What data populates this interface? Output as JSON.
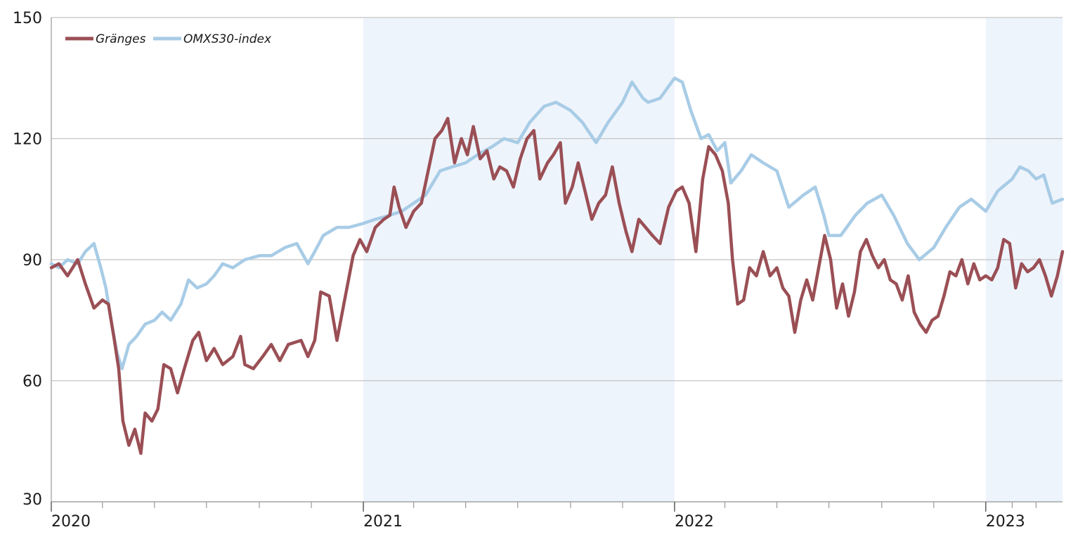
{
  "chart_data": {
    "type": "line",
    "y_ticks": [
      30,
      60,
      90,
      120,
      150
    ],
    "ylim": [
      30,
      150
    ],
    "x_range": [
      "2020-01-01",
      "2023-04-01"
    ],
    "x_tick_labels": [
      {
        "label": "2020",
        "date": "2020-01-01"
      },
      {
        "label": "2021",
        "date": "2021-01-01"
      },
      {
        "label": "2022",
        "date": "2022-01-01"
      },
      {
        "label": "2023",
        "date": "2023-01-01"
      }
    ],
    "month_ticks": [
      "2020-03-01",
      "2020-05-01",
      "2020-07-01",
      "2020-09-01",
      "2020-11-01",
      "2021-01-01",
      "2021-03-01",
      "2021-05-01",
      "2021-07-01",
      "2021-09-01",
      "2021-11-01",
      "2022-01-01",
      "2022-03-01",
      "2022-05-01",
      "2022-07-01",
      "2022-09-01",
      "2022-11-01",
      "2023-01-01",
      "2023-02-01",
      "2023-03-01"
    ],
    "shaded_periods": [
      {
        "from": "2021-01-01",
        "to": "2022-01-01"
      },
      {
        "from": "2023-01-01",
        "to": "2023-04-01"
      }
    ],
    "grid": "horizontal",
    "legend_position": "top-left",
    "series": [
      {
        "name": "Gränges",
        "color": "#9a4f55",
        "points": [
          [
            "2020-01-01",
            88
          ],
          [
            "2020-01-10",
            89
          ],
          [
            "2020-01-20",
            86
          ],
          [
            "2020-02-01",
            90
          ],
          [
            "2020-02-10",
            84
          ],
          [
            "2020-02-20",
            78
          ],
          [
            "2020-03-01",
            80
          ],
          [
            "2020-03-08",
            79
          ],
          [
            "2020-03-15",
            70
          ],
          [
            "2020-03-20",
            63
          ],
          [
            "2020-03-25",
            50
          ],
          [
            "2020-04-01",
            44
          ],
          [
            "2020-04-08",
            48
          ],
          [
            "2020-04-15",
            42
          ],
          [
            "2020-04-20",
            52
          ],
          [
            "2020-04-28",
            50
          ],
          [
            "2020-05-05",
            53
          ],
          [
            "2020-05-12",
            64
          ],
          [
            "2020-05-20",
            63
          ],
          [
            "2020-05-28",
            57
          ],
          [
            "2020-06-05",
            63
          ],
          [
            "2020-06-15",
            70
          ],
          [
            "2020-06-22",
            72
          ],
          [
            "2020-07-01",
            65
          ],
          [
            "2020-07-10",
            68
          ],
          [
            "2020-07-20",
            64
          ],
          [
            "2020-08-01",
            66
          ],
          [
            "2020-08-10",
            71
          ],
          [
            "2020-08-15",
            64
          ],
          [
            "2020-08-25",
            63
          ],
          [
            "2020-09-05",
            66
          ],
          [
            "2020-09-15",
            69
          ],
          [
            "2020-09-25",
            65
          ],
          [
            "2020-10-05",
            69
          ],
          [
            "2020-10-20",
            70
          ],
          [
            "2020-10-28",
            66
          ],
          [
            "2020-11-05",
            70
          ],
          [
            "2020-11-12",
            82
          ],
          [
            "2020-11-22",
            81
          ],
          [
            "2020-12-01",
            70
          ],
          [
            "2020-12-10",
            80
          ],
          [
            "2020-12-20",
            91
          ],
          [
            "2020-12-28",
            95
          ],
          [
            "2021-01-05",
            92
          ],
          [
            "2021-01-15",
            98
          ],
          [
            "2021-01-25",
            100
          ],
          [
            "2021-02-01",
            101
          ],
          [
            "2021-02-06",
            108
          ],
          [
            "2021-02-12",
            103
          ],
          [
            "2021-02-20",
            98
          ],
          [
            "2021-03-01",
            102
          ],
          [
            "2021-03-10",
            104
          ],
          [
            "2021-03-18",
            112
          ],
          [
            "2021-03-26",
            120
          ],
          [
            "2021-04-03",
            122
          ],
          [
            "2021-04-10",
            125
          ],
          [
            "2021-04-18",
            114
          ],
          [
            "2021-04-26",
            120
          ],
          [
            "2021-05-03",
            116
          ],
          [
            "2021-05-10",
            123
          ],
          [
            "2021-05-18",
            115
          ],
          [
            "2021-05-26",
            117
          ],
          [
            "2021-06-03",
            110
          ],
          [
            "2021-06-10",
            113
          ],
          [
            "2021-06-18",
            112
          ],
          [
            "2021-06-26",
            108
          ],
          [
            "2021-07-04",
            115
          ],
          [
            "2021-07-12",
            120
          ],
          [
            "2021-07-20",
            122
          ],
          [
            "2021-07-27",
            110
          ],
          [
            "2021-08-05",
            114
          ],
          [
            "2021-08-12",
            116
          ],
          [
            "2021-08-20",
            119
          ],
          [
            "2021-08-26",
            104
          ],
          [
            "2021-09-03",
            108
          ],
          [
            "2021-09-10",
            114
          ],
          [
            "2021-09-18",
            107
          ],
          [
            "2021-09-26",
            100
          ],
          [
            "2021-10-04",
            104
          ],
          [
            "2021-10-12",
            106
          ],
          [
            "2021-10-20",
            113
          ],
          [
            "2021-10-28",
            104
          ],
          [
            "2021-11-05",
            97
          ],
          [
            "2021-11-12",
            92
          ],
          [
            "2021-11-20",
            100
          ],
          [
            "2021-11-28",
            98
          ],
          [
            "2021-12-06",
            96
          ],
          [
            "2021-12-15",
            94
          ],
          [
            "2021-12-25",
            103
          ],
          [
            "2022-01-03",
            107
          ],
          [
            "2022-01-10",
            108
          ],
          [
            "2022-01-18",
            104
          ],
          [
            "2022-01-26",
            92
          ],
          [
            "2022-02-03",
            110
          ],
          [
            "2022-02-10",
            118
          ],
          [
            "2022-02-18",
            116
          ],
          [
            "2022-02-26",
            112
          ],
          [
            "2022-03-05",
            104
          ],
          [
            "2022-03-10",
            90
          ],
          [
            "2022-03-16",
            79
          ],
          [
            "2022-03-23",
            80
          ],
          [
            "2022-03-30",
            88
          ],
          [
            "2022-04-07",
            86
          ],
          [
            "2022-04-15",
            92
          ],
          [
            "2022-04-23",
            86
          ],
          [
            "2022-05-01",
            88
          ],
          [
            "2022-05-08",
            83
          ],
          [
            "2022-05-15",
            81
          ],
          [
            "2022-05-22",
            72
          ],
          [
            "2022-05-29",
            80
          ],
          [
            "2022-06-05",
            85
          ],
          [
            "2022-06-12",
            80
          ],
          [
            "2022-06-19",
            88
          ],
          [
            "2022-06-26",
            96
          ],
          [
            "2022-07-03",
            90
          ],
          [
            "2022-07-10",
            78
          ],
          [
            "2022-07-17",
            84
          ],
          [
            "2022-07-24",
            76
          ],
          [
            "2022-07-31",
            82
          ],
          [
            "2022-08-07",
            92
          ],
          [
            "2022-08-14",
            95
          ],
          [
            "2022-08-21",
            91
          ],
          [
            "2022-08-28",
            88
          ],
          [
            "2022-09-04",
            90
          ],
          [
            "2022-09-11",
            85
          ],
          [
            "2022-09-18",
            84
          ],
          [
            "2022-09-25",
            80
          ],
          [
            "2022-10-02",
            86
          ],
          [
            "2022-10-09",
            77
          ],
          [
            "2022-10-16",
            74
          ],
          [
            "2022-10-23",
            72
          ],
          [
            "2022-10-30",
            75
          ],
          [
            "2022-11-06",
            76
          ],
          [
            "2022-11-13",
            81
          ],
          [
            "2022-11-20",
            87
          ],
          [
            "2022-11-27",
            86
          ],
          [
            "2022-12-04",
            90
          ],
          [
            "2022-12-11",
            84
          ],
          [
            "2022-12-18",
            89
          ],
          [
            "2022-12-25",
            85
          ],
          [
            "2023-01-01",
            86
          ],
          [
            "2023-01-08",
            85
          ],
          [
            "2023-01-15",
            88
          ],
          [
            "2023-01-22",
            95
          ],
          [
            "2023-01-29",
            94
          ],
          [
            "2023-02-05",
            83
          ],
          [
            "2023-02-12",
            89
          ],
          [
            "2023-02-19",
            87
          ],
          [
            "2023-02-26",
            88
          ],
          [
            "2023-03-05",
            90
          ],
          [
            "2023-03-12",
            86
          ],
          [
            "2023-03-19",
            81
          ],
          [
            "2023-03-26",
            86
          ],
          [
            "2023-04-01",
            92
          ]
        ]
      },
      {
        "name": "OMXS30-index",
        "color": "#a8cce6",
        "points": [
          [
            "2020-01-01",
            89
          ],
          [
            "2020-01-10",
            88
          ],
          [
            "2020-01-20",
            90
          ],
          [
            "2020-02-01",
            89
          ],
          [
            "2020-02-10",
            92
          ],
          [
            "2020-02-20",
            94
          ],
          [
            "2020-02-28",
            88
          ],
          [
            "2020-03-05",
            83
          ],
          [
            "2020-03-12",
            74
          ],
          [
            "2020-03-18",
            67
          ],
          [
            "2020-03-24",
            63
          ],
          [
            "2020-04-01",
            69
          ],
          [
            "2020-04-10",
            71
          ],
          [
            "2020-04-20",
            74
          ],
          [
            "2020-05-01",
            75
          ],
          [
            "2020-05-10",
            77
          ],
          [
            "2020-05-20",
            75
          ],
          [
            "2020-06-01",
            79
          ],
          [
            "2020-06-10",
            85
          ],
          [
            "2020-06-20",
            83
          ],
          [
            "2020-07-01",
            84
          ],
          [
            "2020-07-10",
            86
          ],
          [
            "2020-07-20",
            89
          ],
          [
            "2020-08-01",
            88
          ],
          [
            "2020-08-15",
            90
          ],
          [
            "2020-09-01",
            91
          ],
          [
            "2020-09-15",
            91
          ],
          [
            "2020-10-01",
            93
          ],
          [
            "2020-10-15",
            94
          ],
          [
            "2020-10-28",
            89
          ],
          [
            "2020-11-05",
            92
          ],
          [
            "2020-11-15",
            96
          ],
          [
            "2020-12-01",
            98
          ],
          [
            "2020-12-15",
            98
          ],
          [
            "2021-01-01",
            99
          ],
          [
            "2021-01-15",
            100
          ],
          [
            "2021-02-01",
            101
          ],
          [
            "2021-02-15",
            102
          ],
          [
            "2021-03-01",
            104
          ],
          [
            "2021-03-15",
            106
          ],
          [
            "2021-04-01",
            112
          ],
          [
            "2021-04-15",
            113
          ],
          [
            "2021-05-01",
            114
          ],
          [
            "2021-05-15",
            116
          ],
          [
            "2021-06-01",
            118
          ],
          [
            "2021-06-15",
            120
          ],
          [
            "2021-07-01",
            119
          ],
          [
            "2021-07-15",
            124
          ],
          [
            "2021-08-01",
            128
          ],
          [
            "2021-08-15",
            129
          ],
          [
            "2021-09-01",
            127
          ],
          [
            "2021-09-15",
            124
          ],
          [
            "2021-10-01",
            119
          ],
          [
            "2021-10-15",
            124
          ],
          [
            "2021-11-01",
            129
          ],
          [
            "2021-11-12",
            134
          ],
          [
            "2021-11-25",
            130
          ],
          [
            "2021-12-01",
            129
          ],
          [
            "2021-12-15",
            130
          ],
          [
            "2022-01-01",
            135
          ],
          [
            "2022-01-10",
            134
          ],
          [
            "2022-01-20",
            127
          ],
          [
            "2022-02-01",
            120
          ],
          [
            "2022-02-10",
            121
          ],
          [
            "2022-02-20",
            117
          ],
          [
            "2022-03-01",
            119
          ],
          [
            "2022-03-08",
            109
          ],
          [
            "2022-03-20",
            112
          ],
          [
            "2022-04-01",
            116
          ],
          [
            "2022-04-15",
            114
          ],
          [
            "2022-05-01",
            112
          ],
          [
            "2022-05-15",
            103
          ],
          [
            "2022-06-01",
            106
          ],
          [
            "2022-06-15",
            108
          ],
          [
            "2022-06-25",
            101
          ],
          [
            "2022-07-01",
            96
          ],
          [
            "2022-07-15",
            96
          ],
          [
            "2022-08-01",
            101
          ],
          [
            "2022-08-15",
            104
          ],
          [
            "2022-09-01",
            106
          ],
          [
            "2022-09-15",
            101
          ],
          [
            "2022-10-01",
            94
          ],
          [
            "2022-10-15",
            90
          ],
          [
            "2022-11-01",
            93
          ],
          [
            "2022-11-15",
            98
          ],
          [
            "2022-12-01",
            103
          ],
          [
            "2022-12-15",
            105
          ],
          [
            "2023-01-01",
            102
          ],
          [
            "2023-01-15",
            107
          ],
          [
            "2023-02-01",
            110
          ],
          [
            "2023-02-10",
            113
          ],
          [
            "2023-02-20",
            112
          ],
          [
            "2023-03-01",
            110
          ],
          [
            "2023-03-10",
            111
          ],
          [
            "2023-03-20",
            104
          ],
          [
            "2023-04-01",
            105
          ]
        ]
      }
    ]
  }
}
